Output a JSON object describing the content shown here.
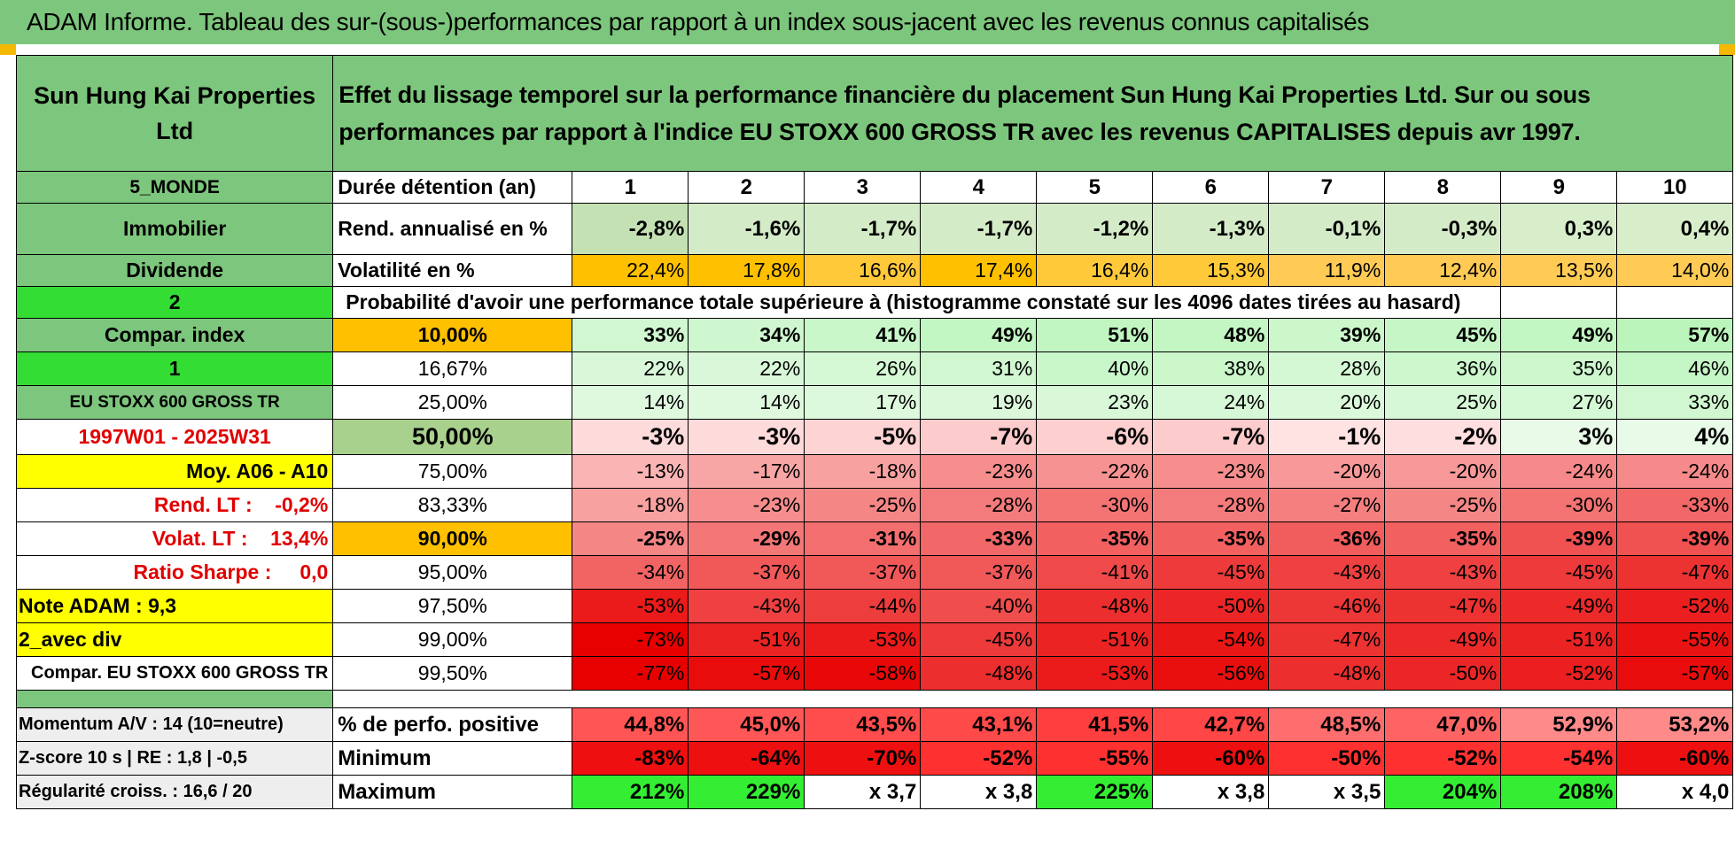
{
  "title": "ADAM Informe. Tableau des sur-(sous-)performances par rapport à un index sous-jacent avec les revenus connus capitalisés",
  "header": {
    "company": "Sun Hung Kai Properties Ltd",
    "description": "Effet du lissage temporel sur la performance financière du placement Sun Hung Kai Properties Ltd. Sur ou sous performances par rapport à l'indice EU STOXX 600 GROSS TR avec les revenus CAPITALISES depuis avr 1997."
  },
  "left_labels": {
    "region": "5_MONDE",
    "sector": "Immobilier",
    "dividend": "Dividende",
    "value_2": "2",
    "compar_index": "Compar. index",
    "value_1": "1",
    "index_name": "EU STOXX 600 GROSS TR",
    "period": "1997W01 - 2025W31",
    "moy": "Moy. A06 - A10",
    "rend_lt": "Rend. LT :    -0,2%",
    "volat_lt": "Volat. LT :    13,4%",
    "ratio_sharpe": "Ratio Sharpe :     0,0",
    "note_adam": "Note ADAM : 9,3",
    "avec_div": "2_avec div",
    "compar_long": "Compar. EU STOXX 600 GROSS TR"
  },
  "duree_label": "Durée détention (an)",
  "years": [
    "1",
    "2",
    "3",
    "4",
    "5",
    "6",
    "7",
    "8",
    "9",
    "10"
  ],
  "rend_label": "Rend. annualisé en %",
  "rend": [
    "-2,8%",
    "-1,6%",
    "-1,7%",
    "-1,7%",
    "-1,2%",
    "-1,3%",
    "-0,1%",
    "-0,3%",
    "0,3%",
    "0,4%"
  ],
  "vol_label": "Volatilité en %",
  "vol": [
    "22,4%",
    "17,8%",
    "16,6%",
    "17,4%",
    "16,4%",
    "15,3%",
    "11,9%",
    "12,4%",
    "13,5%",
    "14,0%"
  ],
  "proba_label": "Probabilité d'avoir une performance totale supérieure à (histogramme constaté sur les 4096 dates tirées au hasard)",
  "quantiles": [
    {
      "label": "10,00%",
      "values": [
        "33%",
        "34%",
        "41%",
        "49%",
        "51%",
        "48%",
        "39%",
        "45%",
        "49%",
        "57%"
      ]
    },
    {
      "label": "16,67%",
      "values": [
        "22%",
        "22%",
        "26%",
        "31%",
        "40%",
        "38%",
        "28%",
        "36%",
        "35%",
        "46%"
      ]
    },
    {
      "label": "25,00%",
      "values": [
        "14%",
        "14%",
        "17%",
        "19%",
        "23%",
        "24%",
        "20%",
        "25%",
        "27%",
        "33%"
      ]
    },
    {
      "label": "50,00%",
      "values": [
        "-3%",
        "-3%",
        "-5%",
        "-7%",
        "-6%",
        "-7%",
        "-1%",
        "-2%",
        "3%",
        "4%"
      ]
    },
    {
      "label": "75,00%",
      "values": [
        "-13%",
        "-17%",
        "-18%",
        "-23%",
        "-22%",
        "-23%",
        "-20%",
        "-20%",
        "-24%",
        "-24%"
      ]
    },
    {
      "label": "83,33%",
      "values": [
        "-18%",
        "-23%",
        "-25%",
        "-28%",
        "-30%",
        "-28%",
        "-27%",
        "-25%",
        "-30%",
        "-33%"
      ]
    },
    {
      "label": "90,00%",
      "values": [
        "-25%",
        "-29%",
        "-31%",
        "-33%",
        "-35%",
        "-35%",
        "-36%",
        "-35%",
        "-39%",
        "-39%"
      ]
    },
    {
      "label": "95,00%",
      "values": [
        "-34%",
        "-37%",
        "-37%",
        "-37%",
        "-41%",
        "-45%",
        "-43%",
        "-43%",
        "-45%",
        "-47%"
      ]
    },
    {
      "label": "97,50%",
      "values": [
        "-53%",
        "-43%",
        "-44%",
        "-40%",
        "-48%",
        "-50%",
        "-46%",
        "-47%",
        "-49%",
        "-52%"
      ]
    },
    {
      "label": "99,00%",
      "values": [
        "-73%",
        "-51%",
        "-53%",
        "-45%",
        "-51%",
        "-54%",
        "-47%",
        "-49%",
        "-51%",
        "-55%"
      ]
    },
    {
      "label": "99,50%",
      "values": [
        "-77%",
        "-57%",
        "-58%",
        "-48%",
        "-53%",
        "-56%",
        "-48%",
        "-50%",
        "-52%",
        "-57%"
      ]
    }
  ],
  "bottom": {
    "momentum": "Momentum A/V : 14 (10=neutre)",
    "zscore": "Z-score 10 s | RE : 1,8 | -0,5",
    "regularite": "Régularité croiss. : 16,6 / 20",
    "pos_label": "% de perfo. positive",
    "pos": [
      "44,8%",
      "45,0%",
      "43,5%",
      "43,1%",
      "41,5%",
      "42,7%",
      "48,5%",
      "47,0%",
      "52,9%",
      "53,2%"
    ],
    "min_label": "Minimum",
    "min": [
      "-83%",
      "-64%",
      "-70%",
      "-52%",
      "-55%",
      "-60%",
      "-50%",
      "-52%",
      "-54%",
      "-60%"
    ],
    "max_label": "Maximum",
    "max": [
      "212%",
      "229%",
      "x 3,7",
      "x 3,8",
      "225%",
      "x 3,8",
      "x 3,5",
      "204%",
      "208%",
      "x 4,0"
    ]
  },
  "colors": {
    "header_green": "#7dc67d",
    "bright_green": "#33dd33",
    "yellow": "#ffff00",
    "orange": "#ffc000",
    "olive_green": "#a9d18e",
    "label_red": "#e00000",
    "max_green": "#33ee33"
  }
}
